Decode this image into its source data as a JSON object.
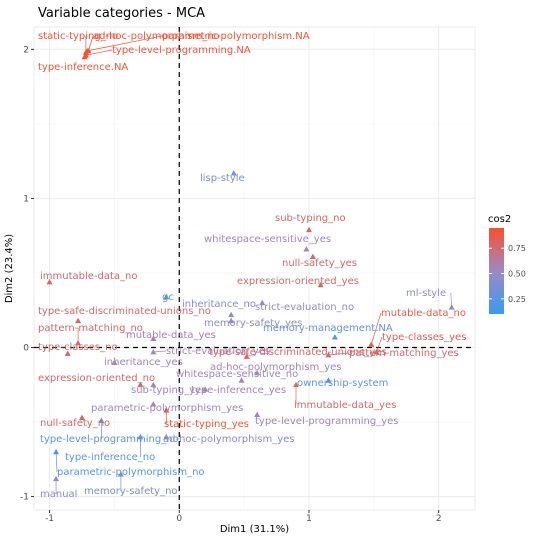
{
  "chart_data": {
    "type": "scatter",
    "title": "Variable categories - MCA",
    "xlabel": "Dim1 (31.1%)",
    "ylabel": "Dim2 (23.4%)",
    "xlim": [
      -1.12,
      2.28
    ],
    "ylim": [
      -1.09,
      2.15
    ],
    "x_ticks": [
      -1,
      0,
      1,
      2
    ],
    "y_ticks": [
      -1,
      0,
      1,
      2
    ],
    "x_tick_labels": [
      "-1",
      "0",
      "1",
      "2"
    ],
    "y_tick_labels": [
      "-1",
      "0",
      "1",
      "2"
    ],
    "grid": true,
    "reference_lines": {
      "x": 0,
      "y": 0
    },
    "legend": {
      "title": "cos2",
      "placement": "right",
      "ticks": [
        0.25,
        0.5,
        0.75
      ],
      "tick_labels": [
        "0.25",
        "0.50",
        "0.75"
      ],
      "range": [
        0.1,
        0.95
      ],
      "colors": [
        "#3a9af1",
        "#9b89c4",
        "#f8502e"
      ]
    },
    "points": [
      {
        "name": "static-typing_no",
        "x": -0.72,
        "y": 1.98,
        "cos2": 0.93
      },
      {
        "name": "ad-hoc-polymorphism_no",
        "x": -0.7,
        "y": 1.99,
        "cos2": 0.93
      },
      {
        "name": "parametric-polymorphism.NA",
        "x": -0.71,
        "y": 1.99,
        "cos2": 0.94
      },
      {
        "name": "type-level-programming.NA",
        "x": -0.72,
        "y": 1.96,
        "cos2": 0.93
      },
      {
        "name": "type-inference.NA",
        "x": -0.73,
        "y": 1.95,
        "cos2": 0.93
      },
      {
        "name": "lisp-style",
        "x": 0.42,
        "y": 1.17,
        "cos2": 0.4
      },
      {
        "name": "sub-typing_no",
        "x": 1.0,
        "y": 0.79,
        "cos2": 0.78
      },
      {
        "name": "whitespace-sensitive_yes",
        "x": 0.98,
        "y": 0.66,
        "cos2": 0.55
      },
      {
        "name": "null-safety_yes",
        "x": 1.03,
        "y": 0.61,
        "cos2": 0.78
      },
      {
        "name": "expression-oriented_yes",
        "x": 1.09,
        "y": 0.42,
        "cos2": 0.78
      },
      {
        "name": "ml-style",
        "x": 2.1,
        "y": 0.27,
        "cos2": 0.45
      },
      {
        "name": "strict-evaluation_no",
        "x": 0.64,
        "y": 0.3,
        "cos2": 0.5
      },
      {
        "name": "immutable-data_no",
        "x": -1.0,
        "y": 0.44,
        "cos2": 0.78
      },
      {
        "name": "gc",
        "x": -0.1,
        "y": 0.34,
        "cos2": 0.25
      },
      {
        "name": "inheritance_no",
        "x": 0.4,
        "y": 0.22,
        "cos2": 0.45
      },
      {
        "name": "memory-safety_yes",
        "x": 0.4,
        "y": 0.18,
        "cos2": 0.45
      },
      {
        "name": "type-safe-discriminated-unions_no",
        "x": -0.78,
        "y": 0.18,
        "cos2": 0.78
      },
      {
        "name": "memory-management.NA",
        "x": 1.2,
        "y": 0.07,
        "cos2": 0.25
      },
      {
        "name": "mutable-data_yes",
        "x": -0.2,
        "y": 0.06,
        "cos2": 0.6
      },
      {
        "name": "mutable-data_no",
        "x": 1.48,
        "y": 0.02,
        "cos2": 0.86
      },
      {
        "name": "type-classes_yes",
        "x": 1.52,
        "y": -0.03,
        "cos2": 0.86
      },
      {
        "name": "pattern-matching_no",
        "x": -0.78,
        "y": 0.03,
        "cos2": 0.78
      },
      {
        "name": "type-classes_no",
        "x": -0.86,
        "y": -0.04,
        "cos2": 0.78
      },
      {
        "name": "strict-evaluation_yes",
        "x": -0.2,
        "y": -0.03,
        "cos2": 0.55
      },
      {
        "name": "type-safe-discriminated-unions_yes",
        "x": 0.52,
        "y": -0.06,
        "cos2": 0.78
      },
      {
        "name": "pattern-matching_yes",
        "x": 1.15,
        "y": -0.05,
        "cos2": 0.78
      },
      {
        "name": "inheritance_yes",
        "x": -0.5,
        "y": -0.1,
        "cos2": 0.55
      },
      {
        "name": "ad-hoc-polymorphism_yes",
        "x": 0.6,
        "y": -0.17,
        "cos2": 0.55
      },
      {
        "name": "whitespace-sensitive_no",
        "x": 0.48,
        "y": -0.22,
        "cos2": 0.55
      },
      {
        "name": "ownership-system",
        "x": 1.15,
        "y": -0.22,
        "cos2": 0.25
      },
      {
        "name": "expression-oriented_no",
        "x": -0.3,
        "y": -0.25,
        "cos2": 0.78
      },
      {
        "name": "sub-typing_yes",
        "x": -0.2,
        "y": -0.25,
        "cos2": 0.55
      },
      {
        "name": "type-inference_yes",
        "x": 0.2,
        "y": -0.28,
        "cos2": 0.55
      },
      {
        "name": "immutable-data_yes",
        "x": 0.9,
        "y": -0.25,
        "cos2": 0.78
      },
      {
        "name": "parametric-polymorphism_yes",
        "x": -0.2,
        "y": -0.38,
        "cos2": 0.55
      },
      {
        "name": "manual",
        "x": -0.95,
        "y": -0.88,
        "cos2": 0.45
      },
      {
        "name": "static-typing_yes",
        "x": -0.1,
        "y": -0.42,
        "cos2": 0.93
      },
      {
        "name": "type-level-programming_yes",
        "x": 0.6,
        "y": -0.45,
        "cos2": 0.55
      },
      {
        "name": "null-safety_no",
        "x": -0.75,
        "y": -0.47,
        "cos2": 0.78
      },
      {
        "name": "type-level-programming_no",
        "x": -0.6,
        "y": -0.49,
        "cos2": 0.25
      },
      {
        "name": "ad-hoc-polymorphism_yes",
        "x": -0.1,
        "y": -0.6,
        "cos2": 0.45
      },
      {
        "name": "type-inference_no",
        "x": -0.3,
        "y": -0.6,
        "cos2": 0.25
      },
      {
        "name": "parametric-polymorphism_no",
        "x": -0.95,
        "y": -0.7,
        "cos2": 0.2
      },
      {
        "name": "memory-safety_no",
        "x": -0.45,
        "y": -0.85,
        "cos2": 0.4
      }
    ]
  }
}
